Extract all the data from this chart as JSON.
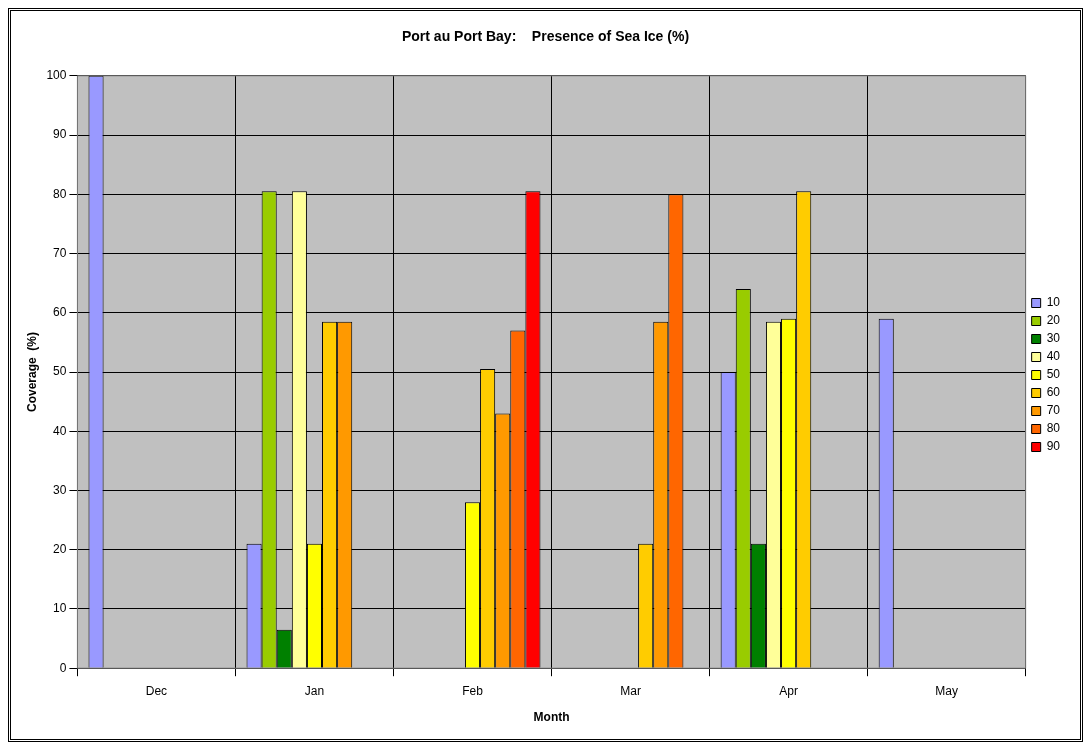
{
  "chart_data": {
    "type": "bar",
    "title": "Port au Port Bay:    Presence of Sea Ice (%)",
    "xlabel": "Month",
    "ylabel": "Coverage  (%)",
    "categories": [
      "Dec",
      "Jan",
      "Feb",
      "Mar",
      "Apr",
      "May"
    ],
    "series": [
      {
        "name": "10",
        "color": "#9999ff",
        "values": [
          100,
          21,
          null,
          null,
          50,
          59
        ]
      },
      {
        "name": "20",
        "color": "#99cc00",
        "values": [
          null,
          80.5,
          null,
          null,
          64,
          null
        ]
      },
      {
        "name": "30",
        "color": "#008000",
        "values": [
          null,
          6.5,
          null,
          null,
          21,
          null
        ]
      },
      {
        "name": "40",
        "color": "#ffff99",
        "values": [
          null,
          80.5,
          null,
          null,
          58.5,
          null
        ]
      },
      {
        "name": "50",
        "color": "#ffff00",
        "values": [
          null,
          21,
          28,
          null,
          59,
          null
        ]
      },
      {
        "name": "60",
        "color": "#ffcc00",
        "values": [
          null,
          58.5,
          50.5,
          21,
          80.5,
          null
        ]
      },
      {
        "name": "70",
        "color": "#ff9900",
        "values": [
          null,
          58.5,
          43,
          58.5,
          null,
          null
        ]
      },
      {
        "name": "80",
        "color": "#ff6600",
        "values": [
          null,
          null,
          57,
          80,
          null,
          null
        ]
      },
      {
        "name": "90",
        "color": "#ff0000",
        "values": [
          null,
          null,
          80.5,
          null,
          null,
          null
        ]
      }
    ],
    "ylim": [
      0,
      100
    ],
    "yticks": [
      0,
      10,
      20,
      30,
      40,
      50,
      60,
      70,
      80,
      90,
      100
    ],
    "grid": true,
    "legend": "right"
  }
}
